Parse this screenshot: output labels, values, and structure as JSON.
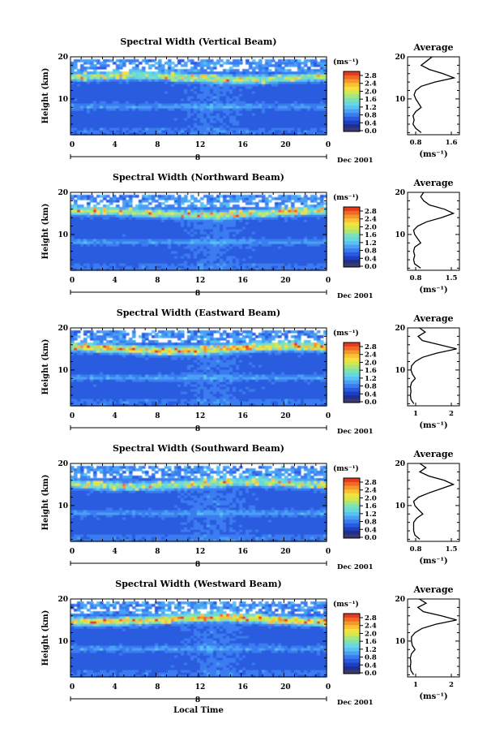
{
  "colors": {
    "scale": [
      "#1f2f8f",
      "#1c3fc4",
      "#2a5bdf",
      "#3a7cf0",
      "#4aa0f5",
      "#5ac2f2",
      "#66d9e0",
      "#7ee0b5",
      "#a6e67c",
      "#d4e84e",
      "#f5e040",
      "#f9c133",
      "#f6962b",
      "#f06a24",
      "#e53a1e"
    ]
  },
  "xaxis": {
    "ticks": [
      "0",
      "4",
      "8",
      "12",
      "16",
      "20",
      "0"
    ],
    "date_marker": "8",
    "date_label": "Dec 2001",
    "label": "Local Time"
  },
  "yaxis": {
    "label": "Height (km)",
    "ticks": [
      "20",
      "10"
    ]
  },
  "colorbar": {
    "unit": "(ms⁻¹)",
    "ticks": [
      "2.8",
      "2.4",
      "2.0",
      "1.6",
      "1.2",
      "0.8",
      "0.4",
      "0.0"
    ]
  },
  "panels": [
    {
      "title": "Spectral Width (Vertical Beam)",
      "avg_title": "Average",
      "avg_ticks": [
        "0.8",
        "1.6"
      ],
      "avg_unit": "(ms⁻¹)"
    },
    {
      "title": "Spectral Width (Northward Beam)",
      "avg_title": "Average",
      "avg_ticks": [
        "0.8",
        "1.5"
      ],
      "avg_unit": "(ms⁻¹)"
    },
    {
      "title": "Spectral Width (Eastward Beam)",
      "avg_title": "Average",
      "avg_ticks": [
        "1",
        "2"
      ],
      "avg_unit": "(ms⁻¹)"
    },
    {
      "title": "Spectral Width (Southward Beam)",
      "avg_title": "Average",
      "avg_ticks": [
        "0.8",
        "1.5"
      ],
      "avg_unit": "(ms⁻¹)"
    },
    {
      "title": "Spectral Width (Westward Beam)",
      "avg_title": "Average",
      "avg_ticks": [
        "1",
        "2"
      ],
      "avg_unit": "(ms⁻¹)"
    }
  ],
  "chart_data": [
    {
      "type": "heatmap",
      "title": "Spectral Width (Vertical Beam)",
      "xlabel": "",
      "ylabel": "Height (km)",
      "xlim": [
        0,
        24
      ],
      "ylim": [
        1.5,
        20
      ],
      "zlim": [
        0.0,
        3.0
      ],
      "profile": {
        "heights": [
          2,
          3,
          4,
          5,
          6,
          7,
          8,
          9,
          10,
          11,
          12,
          13,
          14,
          15,
          16,
          17,
          18,
          19,
          20
        ],
        "values": [
          0.95,
          0.85,
          0.8,
          0.82,
          0.8,
          0.85,
          0.95,
          0.9,
          0.85,
          0.82,
          0.85,
          0.95,
          1.2,
          1.55,
          1.35,
          1.1,
          0.95,
          1.05,
          1.15
        ]
      }
    },
    {
      "type": "heatmap",
      "title": "Spectral Width (Northward Beam)",
      "xlabel": "",
      "ylabel": "Height (km)",
      "xlim": [
        0,
        24
      ],
      "ylim": [
        1.5,
        20
      ],
      "zlim": [
        0.0,
        3.0
      ],
      "profile": {
        "heights": [
          2,
          3,
          4,
          5,
          6,
          7,
          8,
          9,
          10,
          11,
          12,
          13,
          14,
          15,
          16,
          17,
          18,
          19,
          20
        ],
        "values": [
          0.9,
          0.8,
          0.78,
          0.8,
          0.78,
          0.8,
          0.9,
          0.85,
          0.8,
          0.78,
          0.85,
          1.0,
          1.25,
          1.45,
          1.3,
          1.05,
          0.95,
          0.9,
          0.95
        ]
      }
    },
    {
      "type": "heatmap",
      "title": "Spectral Width (Eastward Beam)",
      "xlabel": "",
      "ylabel": "Height (km)",
      "xlim": [
        0,
        24
      ],
      "ylim": [
        1.5,
        20
      ],
      "zlim": [
        0.0,
        3.0
      ],
      "profile": {
        "heights": [
          2,
          3,
          4,
          5,
          6,
          7,
          8,
          9,
          10,
          11,
          12,
          13,
          14,
          15,
          16,
          17,
          18,
          19,
          20
        ],
        "values": [
          0.8,
          0.7,
          0.68,
          0.7,
          0.68,
          0.72,
          0.85,
          0.75,
          0.7,
          0.72,
          0.85,
          1.1,
          1.6,
          2.3,
          1.7,
          1.1,
          0.95,
          1.2,
          1.0
        ]
      }
    },
    {
      "type": "heatmap",
      "title": "Spectral Width (Southward Beam)",
      "xlabel": "",
      "ylabel": "Height (km)",
      "xlim": [
        0,
        24
      ],
      "ylim": [
        1.5,
        20
      ],
      "zlim": [
        0.0,
        3.0
      ],
      "profile": {
        "heights": [
          2,
          3,
          4,
          5,
          6,
          7,
          8,
          9,
          10,
          11,
          12,
          13,
          14,
          15,
          16,
          17,
          18,
          19,
          20
        ],
        "values": [
          0.9,
          0.82,
          0.8,
          0.8,
          0.8,
          0.85,
          0.95,
          0.88,
          0.82,
          0.8,
          0.88,
          1.05,
          1.25,
          1.45,
          1.3,
          1.05,
          0.9,
          1.0,
          0.9
        ]
      }
    },
    {
      "type": "heatmap",
      "title": "Spectral Width (Westward Beam)",
      "xlabel": "Local Time",
      "ylabel": "Height (km)",
      "xlim": [
        0,
        24
      ],
      "ylim": [
        1.5,
        20
      ],
      "zlim": [
        0.0,
        3.0
      ],
      "profile": {
        "heights": [
          2,
          3,
          4,
          5,
          6,
          7,
          8,
          9,
          10,
          11,
          12,
          13,
          14,
          15,
          16,
          17,
          18,
          19,
          20
        ],
        "values": [
          0.8,
          0.7,
          0.68,
          0.7,
          0.68,
          0.72,
          0.85,
          0.75,
          0.72,
          0.72,
          0.85,
          1.1,
          1.6,
          2.35,
          1.8,
          1.15,
          0.95,
          1.25,
          1.0
        ]
      }
    }
  ]
}
